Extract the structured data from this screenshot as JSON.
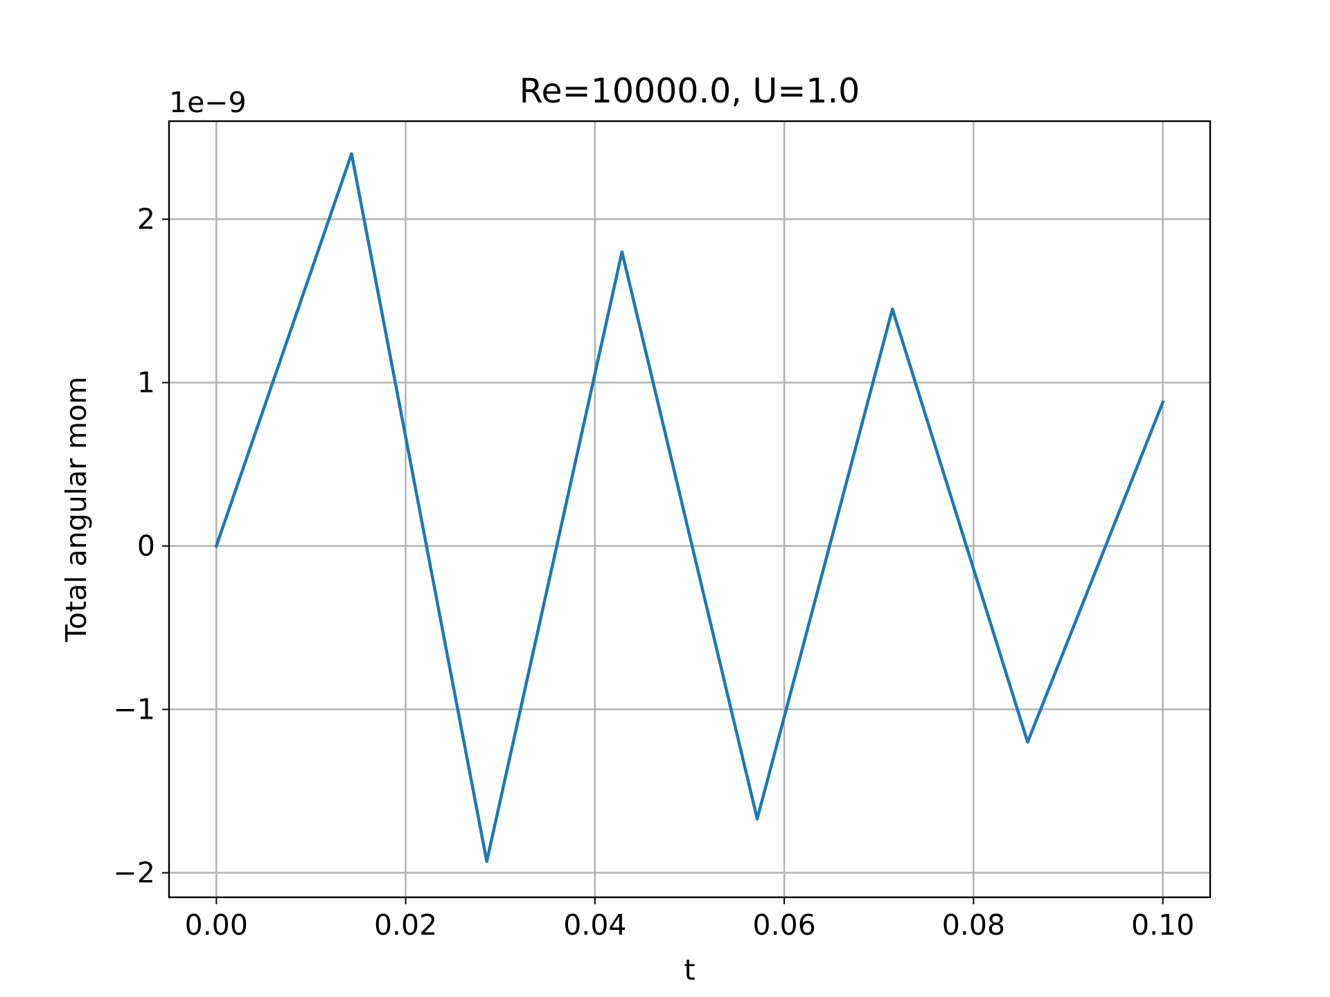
{
  "chart_data": {
    "type": "line",
    "title": "Re=10000.0, U=1.0",
    "xlabel": "t",
    "ylabel": "Total angular mom",
    "y_offset_label": "1e−9",
    "xlim": [
      -0.005,
      0.105
    ],
    "ylim": [
      -2.15,
      2.6
    ],
    "x_ticks": [
      0.0,
      0.02,
      0.04,
      0.06,
      0.08,
      0.1
    ],
    "x_tick_labels": [
      "0.00",
      "0.02",
      "0.04",
      "0.06",
      "0.08",
      "0.10"
    ],
    "y_ticks": [
      -2,
      -1,
      0,
      1,
      2
    ],
    "y_tick_labels": [
      "−2",
      "−1",
      "0",
      "1",
      "2"
    ],
    "grid": true,
    "series": [
      {
        "color": "#1f77b4",
        "x": [
          0.0,
          0.014286,
          0.028571,
          0.042857,
          0.057143,
          0.071429,
          0.085714,
          0.1
        ],
        "y": [
          0.0,
          2.4,
          -1.93,
          1.8,
          -1.67,
          1.45,
          -1.2,
          0.88
        ]
      }
    ]
  }
}
